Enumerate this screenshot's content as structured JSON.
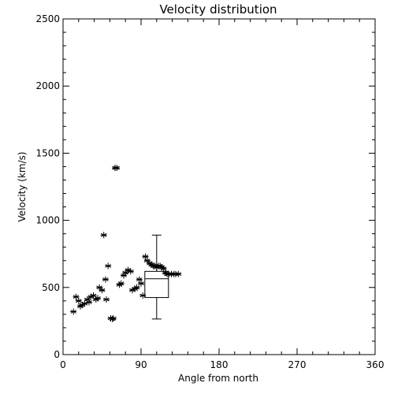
{
  "chart_data": {
    "type": "scatter",
    "title": "Velocity distribution",
    "xlabel": "Angle from north",
    "ylabel": "Velocity (km/s)",
    "xlim": [
      0,
      360
    ],
    "ylim": [
      0,
      2500
    ],
    "xticks": [
      0,
      90,
      180,
      270,
      360
    ],
    "yticks": [
      0,
      500,
      1000,
      1500,
      2000,
      2500
    ],
    "grid": false,
    "marker": "asterisk",
    "points": [
      [
        12,
        320
      ],
      [
        15,
        430
      ],
      [
        18,
        400
      ],
      [
        20,
        360
      ],
      [
        22,
        370
      ],
      [
        25,
        380
      ],
      [
        28,
        410
      ],
      [
        30,
        390
      ],
      [
        32,
        430
      ],
      [
        35,
        440
      ],
      [
        38,
        410
      ],
      [
        40,
        420
      ],
      [
        42,
        500
      ],
      [
        45,
        480
      ],
      [
        47,
        890
      ],
      [
        49,
        560
      ],
      [
        50,
        410
      ],
      [
        52,
        660
      ],
      [
        55,
        270
      ],
      [
        57,
        265
      ],
      [
        58,
        270
      ],
      [
        60,
        1390
      ],
      [
        62,
        1390
      ],
      [
        65,
        520
      ],
      [
        67,
        530
      ],
      [
        70,
        590
      ],
      [
        72,
        610
      ],
      [
        75,
        630
      ],
      [
        78,
        620
      ],
      [
        80,
        480
      ],
      [
        83,
        490
      ],
      [
        85,
        500
      ],
      [
        88,
        560
      ],
      [
        90,
        530
      ],
      [
        92,
        440
      ],
      [
        95,
        730
      ],
      [
        97,
        700
      ],
      [
        100,
        680
      ],
      [
        102,
        670
      ],
      [
        104,
        660
      ],
      [
        106,
        660
      ],
      [
        108,
        650
      ],
      [
        110,
        660
      ],
      [
        112,
        660
      ],
      [
        114,
        650
      ],
      [
        116,
        640
      ],
      [
        118,
        610
      ],
      [
        120,
        600
      ],
      [
        122,
        600
      ],
      [
        125,
        600
      ],
      [
        128,
        600
      ],
      [
        130,
        600
      ],
      [
        133,
        600
      ]
    ],
    "boxplot": {
      "x": 108,
      "min": 265,
      "q1": 425,
      "median": 565,
      "q3": 620,
      "max": 890
    }
  }
}
